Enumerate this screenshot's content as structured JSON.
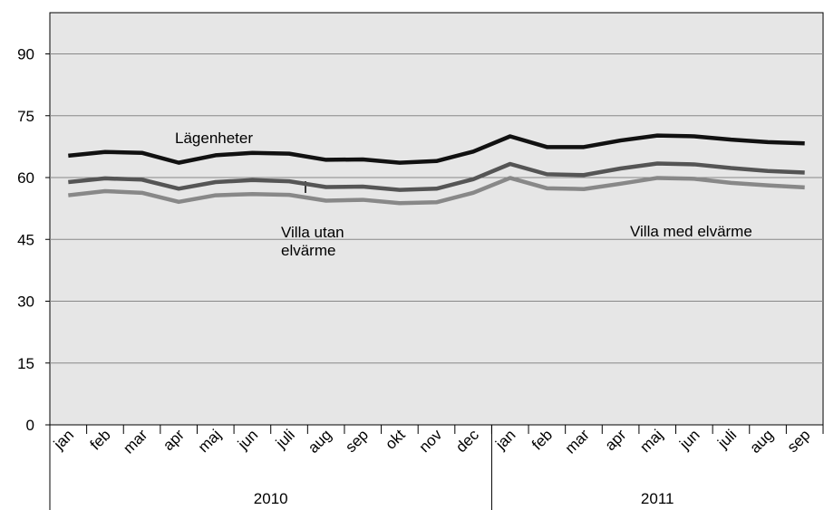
{
  "chart_data": {
    "type": "line",
    "categories": [
      "jan",
      "feb",
      "mar",
      "apr",
      "maj",
      "jun",
      "juli",
      "aug",
      "sep",
      "okt",
      "nov",
      "dec",
      "jan",
      "feb",
      "mar",
      "apr",
      "maj",
      "jun",
      "juli",
      "aug",
      "sep"
    ],
    "groups": [
      {
        "label": "2010",
        "count": 12
      },
      {
        "label": "2011",
        "count": 9
      }
    ],
    "series": [
      {
        "name": "Lägenheter",
        "color": "#111111",
        "values": [
          65.3,
          66.2,
          66.0,
          63.6,
          65.4,
          66.0,
          65.8,
          64.3,
          64.4,
          63.6,
          64.0,
          66.3,
          70.0,
          67.4,
          67.4,
          69.0,
          70.2,
          70.0,
          69.2,
          68.6,
          68.3
        ]
      },
      {
        "name": "Villa utan elvärme",
        "color": "#555555",
        "values": [
          58.9,
          59.8,
          59.5,
          57.3,
          58.9,
          59.4,
          59.1,
          57.7,
          57.8,
          57.0,
          57.3,
          59.6,
          63.3,
          60.8,
          60.6,
          62.2,
          63.4,
          63.2,
          62.3,
          61.6,
          61.2
        ]
      },
      {
        "name": "Villa med elvärme",
        "color": "#888888",
        "values": [
          55.7,
          56.7,
          56.3,
          54.1,
          55.7,
          56.0,
          55.8,
          54.4,
          54.6,
          53.8,
          54.0,
          56.3,
          59.9,
          57.4,
          57.2,
          58.5,
          59.9,
          59.7,
          58.7,
          58.1,
          57.6
        ]
      }
    ],
    "ylim": [
      0,
      100
    ],
    "yticks": [
      0,
      15,
      30,
      45,
      60,
      75,
      90
    ],
    "grid": true
  }
}
